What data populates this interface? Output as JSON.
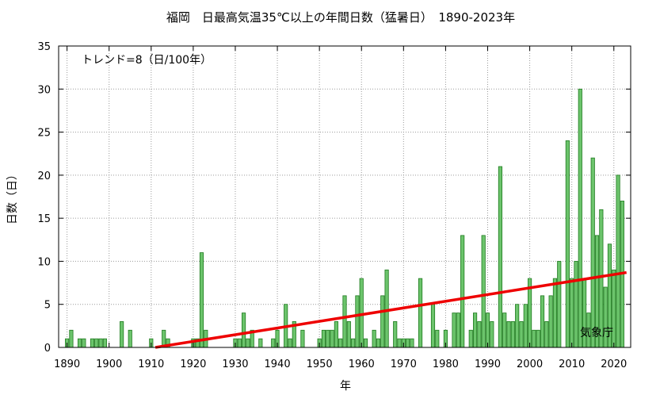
{
  "chart_data": {
    "type": "bar",
    "title": "福岡　日最高気温35℃以上の年間日数（猛暑日）　1890-2023年",
    "xlabel": "年",
    "ylabel": "日数（日）",
    "trend_label": "トレンド=8（日/100年）",
    "source_label": "気象庁",
    "ylim": [
      0,
      35
    ],
    "yticks": [
      0,
      5,
      10,
      15,
      20,
      25,
      30,
      35
    ],
    "xlim": [
      1888,
      2024
    ],
    "xticks": [
      1890,
      1900,
      1910,
      1920,
      1930,
      1940,
      1950,
      1960,
      1970,
      1980,
      1990,
      2000,
      2010,
      2020
    ],
    "grid": true,
    "bar_color": "#6cc46c",
    "bar_edge_color": "#1e7a1e",
    "trend_color": "#ee0000",
    "years": [
      1890,
      1891,
      1892,
      1893,
      1894,
      1895,
      1896,
      1897,
      1898,
      1899,
      1900,
      1901,
      1902,
      1903,
      1904,
      1905,
      1906,
      1907,
      1908,
      1909,
      1910,
      1911,
      1912,
      1913,
      1914,
      1915,
      1916,
      1917,
      1918,
      1919,
      1920,
      1921,
      1922,
      1923,
      1924,
      1925,
      1926,
      1927,
      1928,
      1929,
      1930,
      1931,
      1932,
      1933,
      1934,
      1935,
      1936,
      1937,
      1938,
      1939,
      1940,
      1941,
      1942,
      1943,
      1944,
      1945,
      1946,
      1947,
      1948,
      1949,
      1950,
      1951,
      1952,
      1953,
      1954,
      1955,
      1956,
      1957,
      1958,
      1959,
      1960,
      1961,
      1962,
      1963,
      1964,
      1965,
      1966,
      1967,
      1968,
      1969,
      1970,
      1971,
      1972,
      1973,
      1974,
      1975,
      1976,
      1977,
      1978,
      1979,
      1980,
      1981,
      1982,
      1983,
      1984,
      1985,
      1986,
      1987,
      1988,
      1989,
      1990,
      1991,
      1992,
      1993,
      1994,
      1995,
      1996,
      1997,
      1998,
      1999,
      2000,
      2001,
      2002,
      2003,
      2004,
      2005,
      2006,
      2007,
      2008,
      2009,
      2010,
      2011,
      2012,
      2013,
      2014,
      2015,
      2016,
      2017,
      2018,
      2019,
      2020,
      2021,
      2022,
      2023
    ],
    "values": [
      1,
      2,
      0,
      1,
      1,
      0,
      1,
      1,
      1,
      1,
      0,
      0,
      0,
      3,
      0,
      2,
      0,
      0,
      0,
      0,
      1,
      0,
      0,
      2,
      1,
      0,
      0,
      0,
      0,
      0,
      1,
      1,
      11,
      2,
      0,
      0,
      0,
      0,
      0,
      0,
      1,
      1,
      4,
      1,
      2,
      0,
      1,
      0,
      0,
      1,
      2,
      0,
      5,
      1,
      3,
      0,
      2,
      0,
      0,
      0,
      1,
      2,
      2,
      2,
      3,
      1,
      6,
      3,
      1,
      6,
      8,
      1,
      0,
      2,
      1,
      6,
      9,
      0,
      3,
      1,
      1,
      1,
      1,
      0,
      8,
      0,
      0,
      5,
      2,
      0,
      2,
      0,
      4,
      4,
      13,
      0,
      2,
      4,
      3,
      13,
      4,
      3,
      0,
      21,
      4,
      3,
      3,
      5,
      3,
      5,
      8,
      2,
      2,
      6,
      3,
      6,
      8,
      10,
      0,
      24,
      8,
      10,
      30,
      8,
      4,
      22,
      13,
      16,
      7,
      12,
      9,
      20,
      17,
      0
    ],
    "trend": {
      "x": [
        1911,
        2023
      ],
      "y": [
        0.0,
        8.7
      ]
    }
  }
}
